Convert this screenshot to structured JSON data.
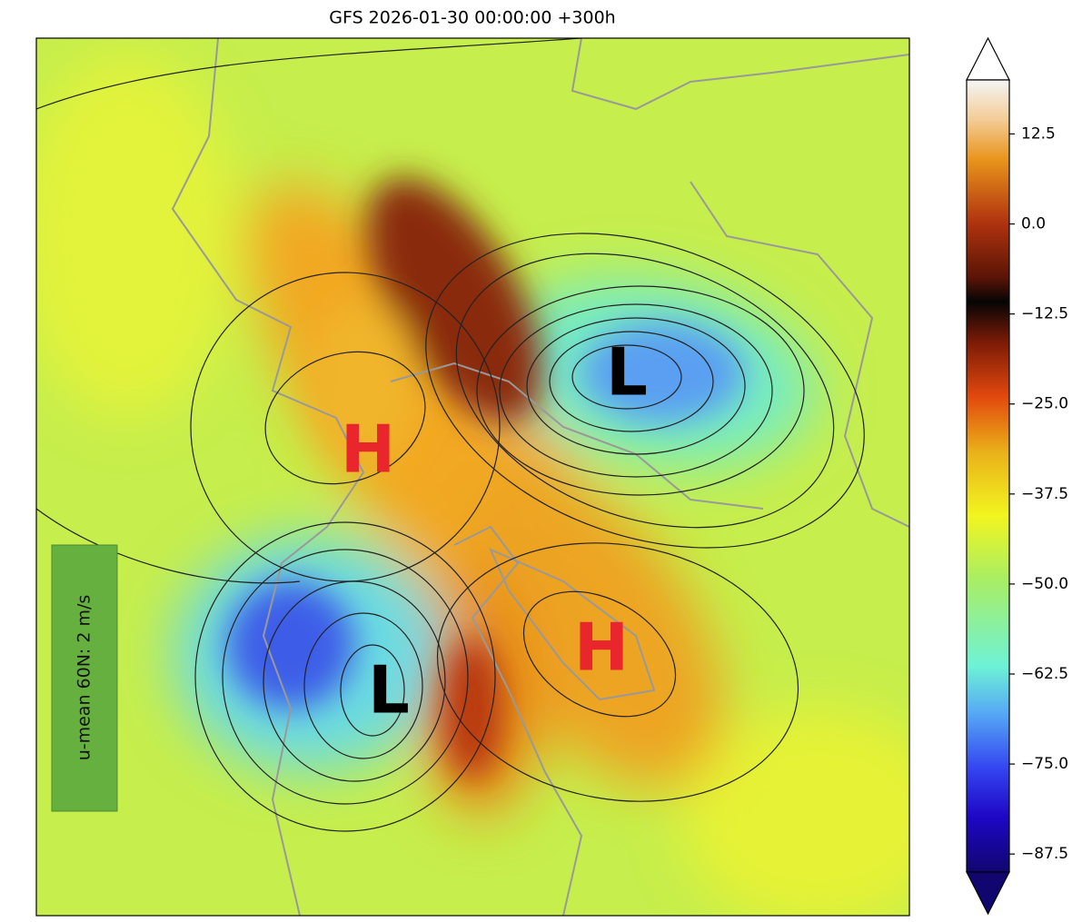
{
  "title": "GFS 2026-01-30 00:00:00 +300h",
  "map": {
    "pressure_labels": [
      "H",
      "L",
      "H",
      "L"
    ],
    "annotation": "u-mean 60N: 2 m/s"
  },
  "colorbar": {
    "lim": [
      -90,
      20
    ],
    "ticks": [
      12.5,
      {
        "value": 0,
        "label": "0.0"
      },
      {
        "value": -12.5,
        "label": "−12.5"
      },
      {
        "value": -25,
        "label": "−25.0"
      },
      {
        "value": -37.5,
        "label": "−37.5"
      },
      {
        "value": -50,
        "label": "−50.0"
      },
      {
        "value": -62.5,
        "label": "−62.5"
      },
      {
        "value": -75,
        "label": "−75.0"
      },
      {
        "value": -87.5,
        "label": "−87.5"
      }
    ]
  }
}
